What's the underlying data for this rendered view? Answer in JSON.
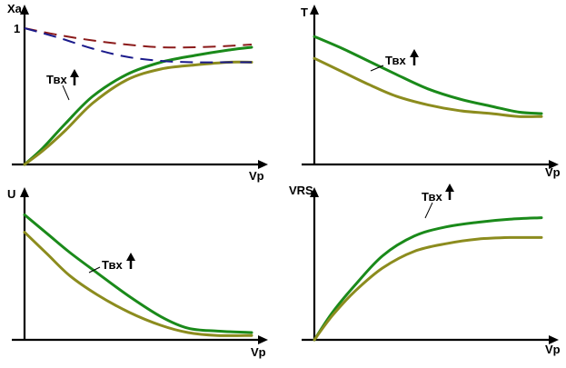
{
  "charts": [
    {
      "ylabel": "Xa",
      "xlabel": "Vp",
      "ytick": "1",
      "annotation": "Твх",
      "series": [
        {
          "color": "#1a8a1a",
          "style": "solid",
          "points": [
            [
              0,
              0
            ],
            [
              0.08,
              0.12
            ],
            [
              0.18,
              0.3
            ],
            [
              0.3,
              0.5
            ],
            [
              0.45,
              0.66
            ],
            [
              0.6,
              0.75
            ],
            [
              0.75,
              0.8
            ],
            [
              0.9,
              0.84
            ],
            [
              1.0,
              0.86
            ]
          ]
        },
        {
          "color": "#8c8c1e",
          "style": "solid",
          "points": [
            [
              0,
              0
            ],
            [
              0.08,
              0.1
            ],
            [
              0.18,
              0.25
            ],
            [
              0.3,
              0.45
            ],
            [
              0.45,
              0.62
            ],
            [
              0.6,
              0.7
            ],
            [
              0.75,
              0.73
            ],
            [
              0.9,
              0.75
            ],
            [
              1.0,
              0.75
            ]
          ]
        },
        {
          "color": "#8b1a1a",
          "style": "dashed",
          "points": [
            [
              0,
              1.0
            ],
            [
              0.15,
              0.95
            ],
            [
              0.3,
              0.91
            ],
            [
              0.45,
              0.88
            ],
            [
              0.6,
              0.86
            ],
            [
              0.75,
              0.86
            ],
            [
              0.9,
              0.87
            ],
            [
              1.0,
              0.88
            ]
          ]
        },
        {
          "color": "#1a1a8b",
          "style": "dashed",
          "points": [
            [
              0,
              1.0
            ],
            [
              0.15,
              0.93
            ],
            [
              0.3,
              0.85
            ],
            [
              0.45,
              0.79
            ],
            [
              0.6,
              0.76
            ],
            [
              0.75,
              0.75
            ],
            [
              0.9,
              0.75
            ],
            [
              1.0,
              0.75
            ]
          ]
        }
      ]
    },
    {
      "ylabel": "T",
      "xlabel": "Vp",
      "ytick": "",
      "annotation": "Твх",
      "series": [
        {
          "color": "#1a8a1a",
          "style": "solid",
          "points": [
            [
              0,
              0.88
            ],
            [
              0.12,
              0.8
            ],
            [
              0.24,
              0.71
            ],
            [
              0.36,
              0.62
            ],
            [
              0.5,
              0.52
            ],
            [
              0.64,
              0.45
            ],
            [
              0.78,
              0.4
            ],
            [
              0.9,
              0.36
            ],
            [
              1.0,
              0.35
            ]
          ]
        },
        {
          "color": "#8c8c1e",
          "style": "solid",
          "points": [
            [
              0,
              0.73
            ],
            [
              0.12,
              0.64
            ],
            [
              0.24,
              0.55
            ],
            [
              0.36,
              0.47
            ],
            [
              0.5,
              0.41
            ],
            [
              0.64,
              0.37
            ],
            [
              0.78,
              0.35
            ],
            [
              0.9,
              0.33
            ],
            [
              1.0,
              0.33
            ]
          ]
        }
      ]
    },
    {
      "ylabel": "U",
      "xlabel": "Vp",
      "ytick": "",
      "annotation": "Твх",
      "series": [
        {
          "color": "#1a8a1a",
          "style": "solid",
          "points": [
            [
              0,
              0.86
            ],
            [
              0.1,
              0.73
            ],
            [
              0.2,
              0.6
            ],
            [
              0.32,
              0.46
            ],
            [
              0.46,
              0.3
            ],
            [
              0.6,
              0.16
            ],
            [
              0.72,
              0.08
            ],
            [
              0.85,
              0.06
            ],
            [
              1.0,
              0.05
            ]
          ]
        },
        {
          "color": "#8c8c1e",
          "style": "solid",
          "points": [
            [
              0,
              0.74
            ],
            [
              0.1,
              0.59
            ],
            [
              0.2,
              0.44
            ],
            [
              0.32,
              0.31
            ],
            [
              0.46,
              0.19
            ],
            [
              0.6,
              0.1
            ],
            [
              0.72,
              0.05
            ],
            [
              0.85,
              0.03
            ],
            [
              1.0,
              0.03
            ]
          ]
        }
      ]
    },
    {
      "ylabel": "VRS",
      "xlabel": "Vp",
      "ytick": "",
      "annotation": "Твх",
      "series": [
        {
          "color": "#1a8a1a",
          "style": "solid",
          "points": [
            [
              0,
              0
            ],
            [
              0.08,
              0.18
            ],
            [
              0.18,
              0.36
            ],
            [
              0.3,
              0.55
            ],
            [
              0.44,
              0.68
            ],
            [
              0.58,
              0.74
            ],
            [
              0.72,
              0.77
            ],
            [
              0.86,
              0.79
            ],
            [
              1.0,
              0.8
            ]
          ]
        },
        {
          "color": "#8c8c1e",
          "style": "solid",
          "points": [
            [
              0,
              0
            ],
            [
              0.08,
              0.16
            ],
            [
              0.18,
              0.32
            ],
            [
              0.3,
              0.47
            ],
            [
              0.44,
              0.58
            ],
            [
              0.58,
              0.63
            ],
            [
              0.72,
              0.66
            ],
            [
              0.86,
              0.67
            ],
            [
              1.0,
              0.67
            ]
          ]
        }
      ]
    }
  ]
}
